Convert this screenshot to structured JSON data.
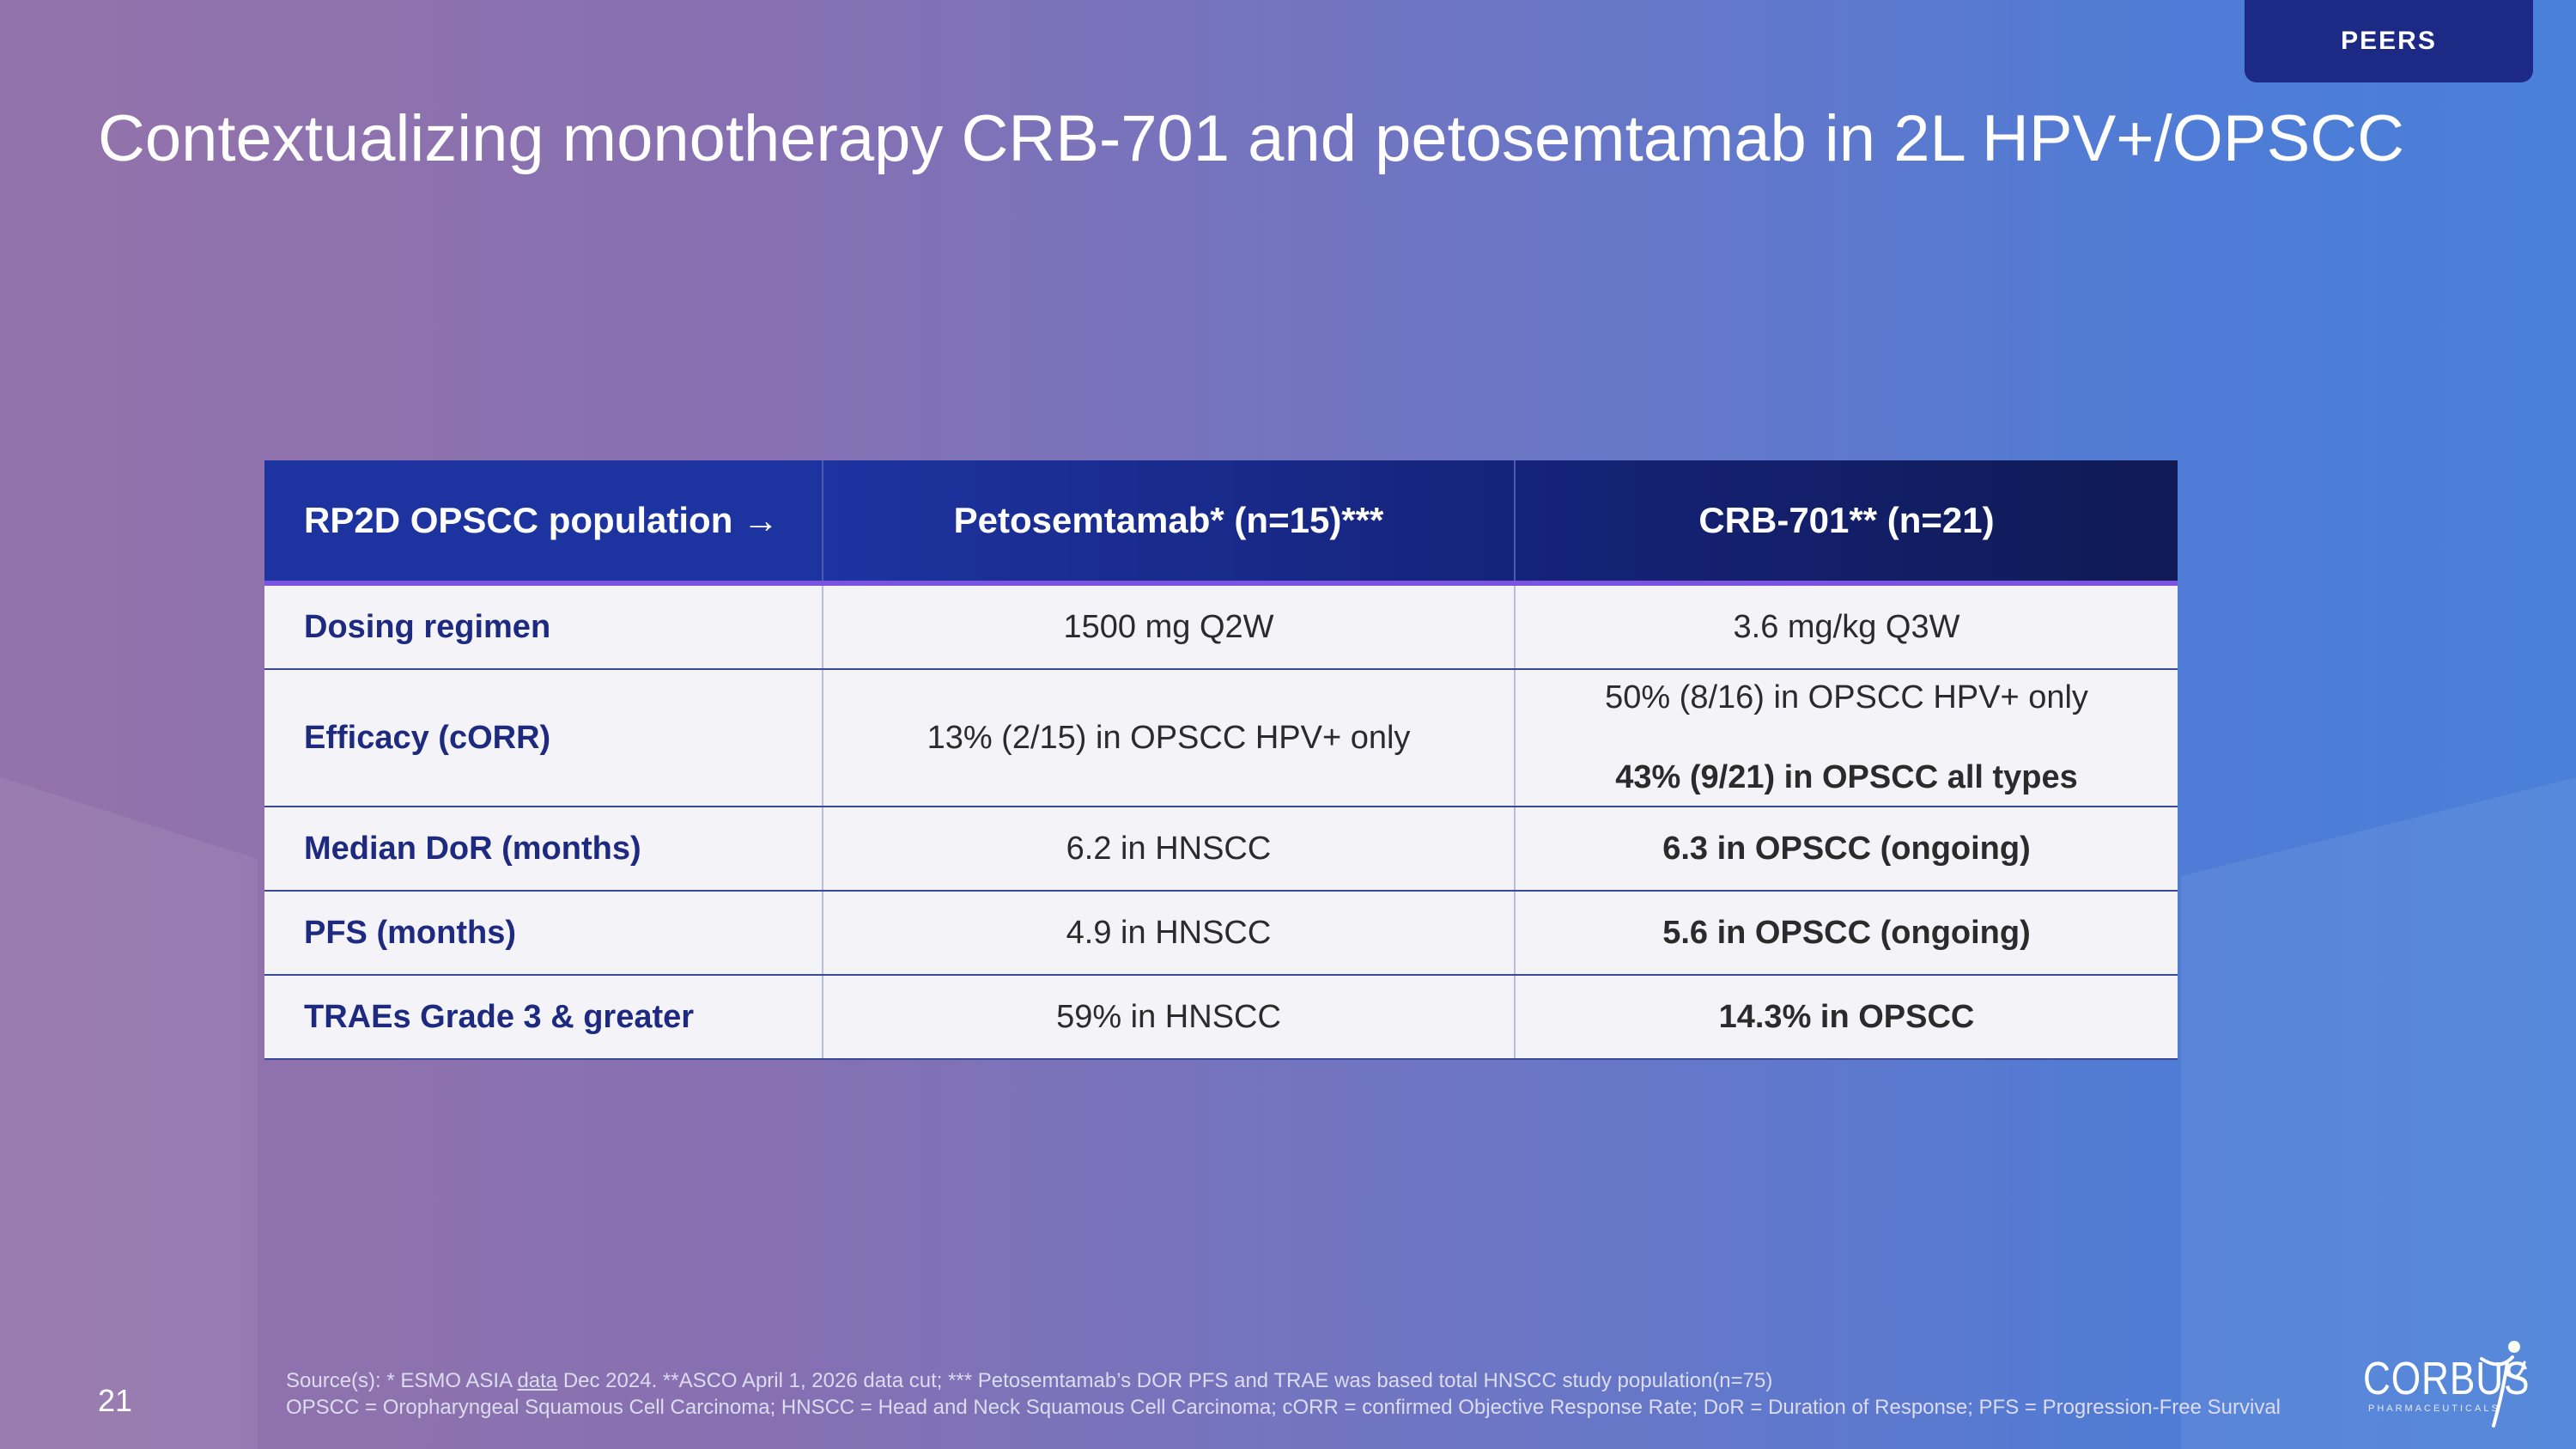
{
  "header": {
    "tag": "PEERS",
    "title": "Contextualizing monotherapy CRB-701 and petosemtamab in 2L HPV+/OPSCC"
  },
  "table": {
    "columns": [
      "RP2D OPSCC population →",
      "Petosemtamab* (n=15)***",
      "CRB-701** (n=21)"
    ],
    "rows": [
      {
        "label": "Dosing regimen",
        "peto": "1500 mg Q2W",
        "crb": "3.6 mg/kg Q3W"
      },
      {
        "label": "Efficacy (cORR)",
        "peto": "13% (2/15) in OPSCC HPV+ only",
        "crb_line1": "50% (8/16) in OPSCC HPV+ only",
        "crb_line2": "43% (9/21) in OPSCC all types"
      },
      {
        "label": "Median DoR (months)",
        "peto": "6.2 in HNSCC",
        "crb": "6.3 in OPSCC (ongoing)"
      },
      {
        "label": "PFS (months)",
        "peto": "4.9 in HNSCC",
        "crb": "5.6 in OPSCC (ongoing)"
      },
      {
        "label": "TRAEs Grade 3 & greater",
        "peto": "59% in HNSCC",
        "crb": "14.3% in OPSCC"
      }
    ]
  },
  "footer": {
    "page_number": "21",
    "source_prefix": "Source(s): * ESMO ASIA ",
    "source_link": "data",
    "source_rest": " Dec 2024.  **ASCO April 1, 2026 data cut; *** Petosemtamab’s DOR PFS and TRAE was based  total HNSCC study population(n=75)",
    "abbreviations": "OPSCC = Oropharyngeal Squamous Cell Carcinoma; HNSCC = Head and Neck Squamous Cell Carcinoma; cORR = confirmed Objective Response Rate; DoR = Duration of Response; PFS = Progression-Free Survival"
  },
  "logo": {
    "name": "CORBUS",
    "sub": "PHARMACEUTICALS"
  },
  "colors": {
    "header_blue": "#1d33a0",
    "header_navy": "#101a55",
    "accent_purple": "#7a54e0",
    "label_blue": "#1d2a80"
  }
}
